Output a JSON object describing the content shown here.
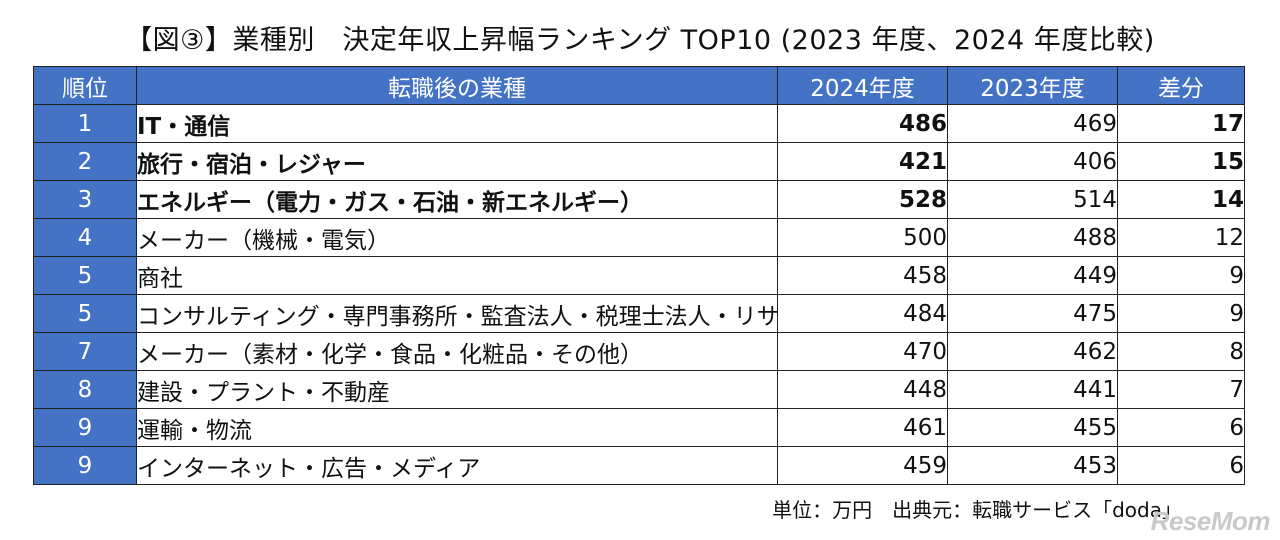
{
  "title": "【図③】業種別　決定年収上昇幅ランキング TOP10 (2023 年度、2024 年度比較)",
  "headers": {
    "rank": "順位",
    "industry": "転職後の業種",
    "y2024": "2024年度",
    "y2023": "2023年度",
    "diff": "差分"
  },
  "rows": [
    {
      "rank": "1",
      "industry": "IT・通信",
      "y2024": "486",
      "y2023": "469",
      "diff": "17"
    },
    {
      "rank": "2",
      "industry": "旅行・宿泊・レジャー",
      "y2024": "421",
      "y2023": "406",
      "diff": "15"
    },
    {
      "rank": "3",
      "industry": "エネルギー（電力・ガス・石油・新エネルギー）",
      "y2024": "528",
      "y2023": "514",
      "diff": "14"
    },
    {
      "rank": "4",
      "industry": "メーカー（機械・電気）",
      "y2024": "500",
      "y2023": "488",
      "diff": "12"
    },
    {
      "rank": "5",
      "industry": "商社",
      "y2024": "458",
      "y2023": "449",
      "diff": "9"
    },
    {
      "rank": "5",
      "industry": "コンサルティング・専門事務所・監査法人・税理士法人・リサーチ",
      "y2024": "484",
      "y2023": "475",
      "diff": "9"
    },
    {
      "rank": "7",
      "industry": "メーカー（素材・化学・食品・化粧品・その他）",
      "y2024": "470",
      "y2023": "462",
      "diff": "8"
    },
    {
      "rank": "8",
      "industry": "建設・プラント・不動産",
      "y2024": "448",
      "y2023": "441",
      "diff": "7"
    },
    {
      "rank": "9",
      "industry": "運輸・物流",
      "y2024": "461",
      "y2023": "455",
      "diff": "6"
    },
    {
      "rank": "9",
      "industry": "インターネット・広告・メディア",
      "y2024": "459",
      "y2023": "453",
      "diff": "6"
    }
  ],
  "footer": "単位：万円　出典元：転職サービス「doda」",
  "logo": "ReseMom",
  "colors": {
    "header_bg": "#4472c4",
    "header_text": "#ffffff",
    "border": "#222222"
  }
}
